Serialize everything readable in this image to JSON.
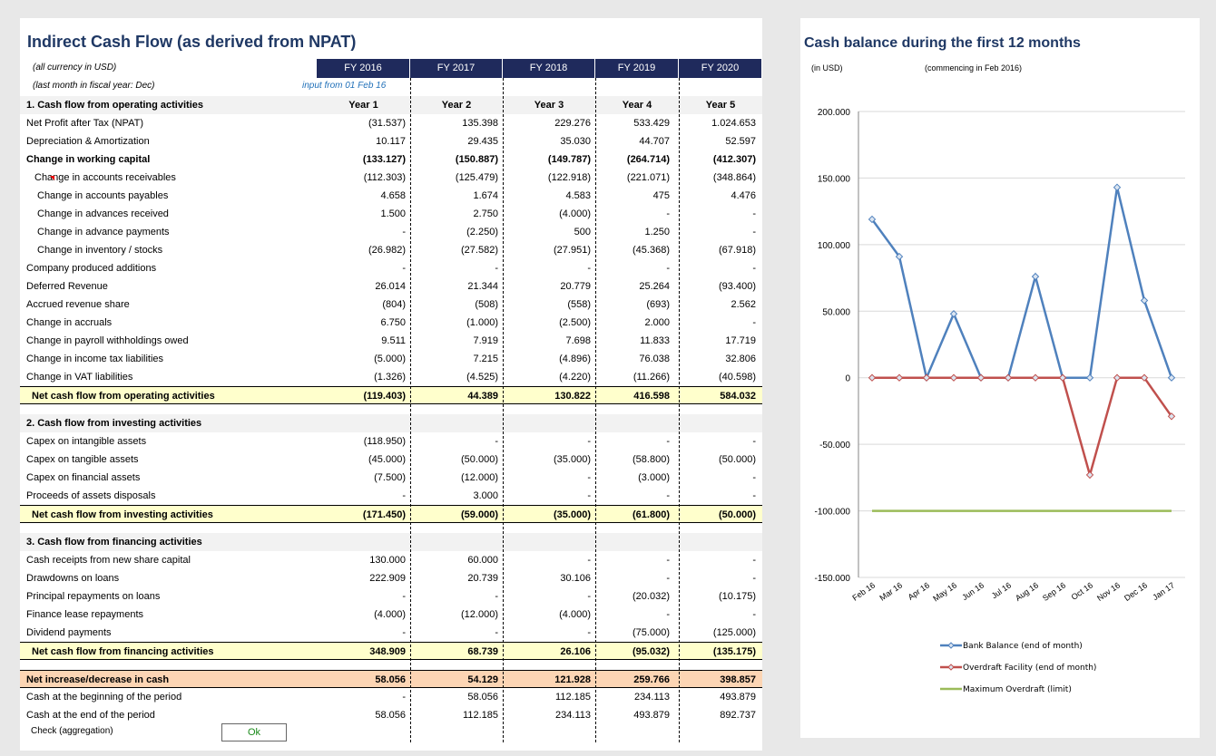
{
  "sheet": {
    "title": "Indirect Cash Flow (as derived from NPAT)",
    "currency_note": "(all currency in USD)",
    "fiscal_note": "(last month in fiscal year: Dec)",
    "input_note": "input from 01 Feb 16",
    "fy_headers": [
      "FY 2016",
      "FY 2017",
      "FY 2018",
      "FY 2019",
      "FY 2020"
    ],
    "year_headers": [
      "Year 1",
      "Year 2",
      "Year 3",
      "Year 4",
      "Year 5"
    ],
    "check_label": "Check (aggregation)",
    "check_value": "Ok",
    "rows": [
      {
        "label": "1. Cash flow from operating activities",
        "type": "sec",
        "values": [
          "Year 1",
          "Year 2",
          "Year 3",
          "Year 4",
          "Year 5"
        ]
      },
      {
        "label": "Net Profit after Tax (NPAT)",
        "type": "n",
        "values": [
          "(31.537)",
          "135.398",
          "229.276",
          "533.429",
          "1.024.653"
        ]
      },
      {
        "label": "Depreciation & Amortization",
        "type": "n",
        "values": [
          "10.117",
          "29.435",
          "35.030",
          "44.707",
          "52.597"
        ]
      },
      {
        "label": "Change in working capital",
        "type": "b",
        "values": [
          "(133.127)",
          "(150.887)",
          "(149.787)",
          "(264.714)",
          "(412.307)"
        ]
      },
      {
        "label": "Change in accounts receivables",
        "type": "i1",
        "values": [
          "(112.303)",
          "(125.479)",
          "(122.918)",
          "(221.071)",
          "(348.864)"
        ]
      },
      {
        "label": "Change in accounts payables",
        "type": "i2",
        "values": [
          "4.658",
          "1.674",
          "4.583",
          "475",
          "4.476"
        ]
      },
      {
        "label": "Change in advances received",
        "type": "i2",
        "values": [
          "1.500",
          "2.750",
          "(4.000)",
          "-",
          "-"
        ]
      },
      {
        "label": "Change in advance payments",
        "type": "i2",
        "values": [
          "-",
          "(2.250)",
          "500",
          "1.250",
          "-"
        ]
      },
      {
        "label": "Change in inventory / stocks",
        "type": "i2",
        "values": [
          "(26.982)",
          "(27.582)",
          "(27.951)",
          "(45.368)",
          "(67.918)"
        ]
      },
      {
        "label": "Company produced additions",
        "type": "n",
        "values": [
          "-",
          "-",
          "-",
          "-",
          "-"
        ]
      },
      {
        "label": "Deferred Revenue",
        "type": "n",
        "values": [
          "26.014",
          "21.344",
          "20.779",
          "25.264",
          "(93.400)"
        ]
      },
      {
        "label": "Accrued revenue share",
        "type": "n",
        "values": [
          "(804)",
          "(508)",
          "(558)",
          "(693)",
          "2.562"
        ]
      },
      {
        "label": "Change in accruals",
        "type": "n",
        "values": [
          "6.750",
          "(1.000)",
          "(2.500)",
          "2.000",
          "-"
        ]
      },
      {
        "label": "Change in payroll withholdings owed",
        "type": "n",
        "values": [
          "9.511",
          "7.919",
          "7.698",
          "11.833",
          "17.719"
        ]
      },
      {
        "label": "Change in income tax liabilities",
        "type": "n",
        "values": [
          "(5.000)",
          "7.215",
          "(4.896)",
          "76.038",
          "32.806"
        ]
      },
      {
        "label": "Change in VAT liabilities",
        "type": "n",
        "values": [
          "(1.326)",
          "(4.525)",
          "(4.220)",
          "(11.266)",
          "(40.598)"
        ]
      },
      {
        "label": "Net cash flow from operating activities",
        "type": "sub",
        "values": [
          "(119.403)",
          "44.389",
          "130.822",
          "416.598",
          "584.032"
        ]
      },
      {
        "label": "",
        "type": "gap",
        "values": [
          "",
          "",
          "",
          "",
          ""
        ]
      },
      {
        "label": "2. Cash flow from investing activities",
        "type": "sec",
        "values": [
          "",
          "",
          "",
          "",
          ""
        ]
      },
      {
        "label": "Capex on intangible assets",
        "type": "n",
        "values": [
          "(118.950)",
          "-",
          "-",
          "-",
          "-"
        ]
      },
      {
        "label": "Capex on tangible assets",
        "type": "n",
        "values": [
          "(45.000)",
          "(50.000)",
          "(35.000)",
          "(58.800)",
          "(50.000)"
        ]
      },
      {
        "label": "Capex on financial assets",
        "type": "n",
        "values": [
          "(7.500)",
          "(12.000)",
          "-",
          "(3.000)",
          "-"
        ]
      },
      {
        "label": "Proceeds of assets disposals",
        "type": "n",
        "values": [
          "-",
          "3.000",
          "-",
          "-",
          "-"
        ]
      },
      {
        "label": "Net cash flow from investing activities",
        "type": "sub",
        "values": [
          "(171.450)",
          "(59.000)",
          "(35.000)",
          "(61.800)",
          "(50.000)"
        ]
      },
      {
        "label": "",
        "type": "gap",
        "values": [
          "",
          "",
          "",
          "",
          ""
        ]
      },
      {
        "label": "3. Cash flow from financing activities",
        "type": "sec",
        "values": [
          "",
          "",
          "",
          "",
          ""
        ]
      },
      {
        "label": "Cash receipts from new share capital",
        "type": "n",
        "values": [
          "130.000",
          "60.000",
          "-",
          "-",
          "-"
        ]
      },
      {
        "label": "Drawdowns on loans",
        "type": "n",
        "values": [
          "222.909",
          "20.739",
          "30.106",
          "-",
          "-"
        ]
      },
      {
        "label": "Principal repayments on loans",
        "type": "n",
        "values": [
          "-",
          "-",
          "-",
          "(20.032)",
          "(10.175)"
        ]
      },
      {
        "label": "Finance lease repayments",
        "type": "n",
        "values": [
          "(4.000)",
          "(12.000)",
          "(4.000)",
          "-",
          "-"
        ]
      },
      {
        "label": "Dividend payments",
        "type": "n",
        "values": [
          "-",
          "-",
          "-",
          "(75.000)",
          "(125.000)"
        ]
      },
      {
        "label": "Net cash flow from financing activities",
        "type": "sub",
        "values": [
          "348.909",
          "68.739",
          "26.106",
          "(95.032)",
          "(135.175)"
        ]
      },
      {
        "label": "",
        "type": "gap",
        "values": [
          "",
          "",
          "",
          "",
          ""
        ]
      },
      {
        "label": "Net increase/decrease in cash",
        "type": "net",
        "values": [
          "58.056",
          "54.129",
          "121.928",
          "259.766",
          "398.857"
        ]
      },
      {
        "label": "Cash at the beginning of the period",
        "type": "n",
        "values": [
          "-",
          "58.056",
          "112.185",
          "234.113",
          "493.879"
        ]
      },
      {
        "label": "Cash at the end of the period",
        "type": "n",
        "values": [
          "58.056",
          "112.185",
          "234.113",
          "493.879",
          "892.737"
        ]
      }
    ]
  },
  "chart_data": {
    "type": "line",
    "title": "Cash balance during the first 12 months",
    "unit_note": "(in USD)",
    "period_note": "(commencing in Feb 2016)",
    "categories": [
      "Feb 16",
      "Mar 16",
      "Apr 16",
      "May 16",
      "Jun 16",
      "Jul 16",
      "Aug 16",
      "Sep 16",
      "Oct 16",
      "Nov 16",
      "Dec 16",
      "Jan 17"
    ],
    "ylim": [
      -150000,
      200000
    ],
    "yticks": [
      "200.000",
      "150.000",
      "100.000",
      "50.000",
      "0",
      "-50.000",
      "-100.000",
      "-150.000"
    ],
    "ytick_values": [
      200000,
      150000,
      100000,
      50000,
      0,
      -50000,
      -100000,
      -150000
    ],
    "grid": true,
    "legend_position": "bottom",
    "series": [
      {
        "name": "Bank Balance (end of month)",
        "color": "#4f81bd",
        "markers": true,
        "values": [
          119000,
          91000,
          0,
          48000,
          0,
          0,
          76000,
          0,
          0,
          143000,
          58000,
          0
        ]
      },
      {
        "name": "Overdraft Facility (end of month)",
        "color": "#c0504d",
        "markers": true,
        "values": [
          0,
          0,
          0,
          0,
          0,
          0,
          0,
          0,
          -73000,
          0,
          0,
          -29000
        ]
      },
      {
        "name": "Maximum Overdraft (limit)",
        "color": "#9bbb59",
        "markers": false,
        "values": [
          -100000,
          -100000,
          -100000,
          -100000,
          -100000,
          -100000,
          -100000,
          -100000,
          -100000,
          -100000,
          -100000,
          -100000
        ]
      }
    ]
  }
}
